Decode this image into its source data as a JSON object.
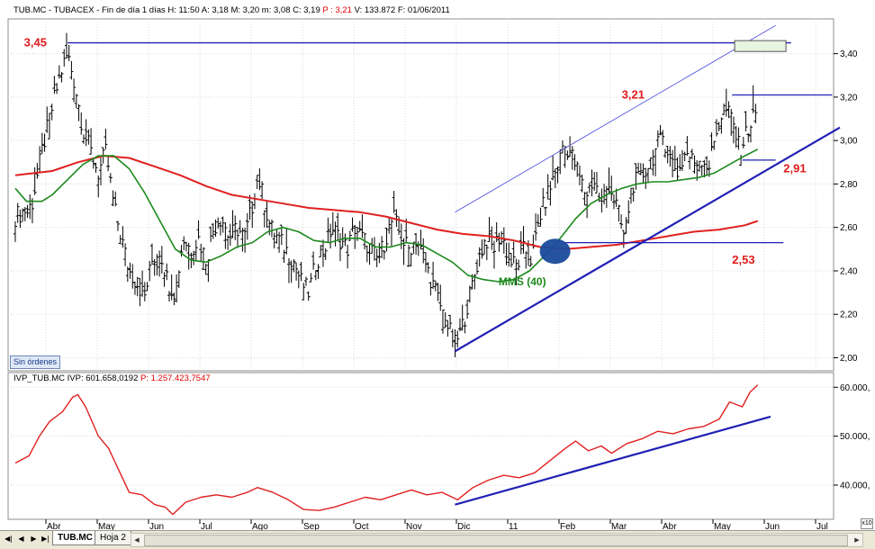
{
  "header": {
    "main": "TUB.MC - TUBACEX - Fin de día 1 días  H: 11:50  A: 3,18  M: 3,20  m: 3,08  C: 3,19",
    "main_red": "P : 3,21",
    "main_tail": "V: 133.872  F: 01/06/2011",
    "lower": "IVP_TUB.MC  IVP: 601.658,0192",
    "lower_red": "P: 1.257.423,7547"
  },
  "colors": {
    "price_bars": "#000000",
    "sma_long": "#e02020",
    "sma_40": "#1c8a1c",
    "trendlines": "#1f1fb5",
    "channel_line": "#5a5ae0",
    "ivp_line": "#e02020",
    "circle_marker": "#1a4a9a",
    "target_box": "#e6f5e0"
  },
  "buttons": {
    "sin_ordenes": "Sin órdenes"
  },
  "tabs": {
    "active": "TUB.MC",
    "other": "Hoja 2"
  },
  "nav_icons": [
    "first-icon",
    "prev-icon",
    "next-icon",
    "last-icon"
  ],
  "corner_tag": "x10",
  "chart_data": [
    {
      "type": "bar",
      "subtype": "ohlc",
      "ylim": [
        1.94,
        3.56
      ],
      "yticks": [
        "2,00",
        "2,20",
        "2,40",
        "2,60",
        "2,80",
        "3,00",
        "3,20",
        "3,40"
      ],
      "ytick_values": [
        2.0,
        2.2,
        2.4,
        2.6,
        2.8,
        3.0,
        3.2,
        3.4
      ],
      "x_months": [
        "Abr",
        "May",
        "Jun",
        "Jul",
        "Ago",
        "Sep",
        "Oct",
        "Nov",
        "Dic",
        "11",
        "Feb",
        "Mar",
        "Abr",
        "May",
        "Jun",
        "Jul"
      ],
      "x_month_index": [
        0,
        1,
        2,
        3,
        4,
        5,
        6,
        7,
        8,
        9,
        10,
        11,
        12,
        13,
        14,
        15
      ],
      "xlim": [
        -0.55,
        15.4
      ],
      "close_path": [
        [
          -0.72,
          2.65
        ],
        [
          -0.4,
          2.7
        ],
        [
          -0.2,
          2.95
        ],
        [
          0.0,
          3.15
        ],
        [
          0.15,
          3.3
        ],
        [
          0.3,
          3.4
        ],
        [
          0.45,
          3.25
        ],
        [
          0.6,
          3.05
        ],
        [
          0.75,
          2.95
        ],
        [
          0.9,
          2.85
        ],
        [
          1.05,
          2.95
        ],
        [
          1.2,
          2.7
        ],
        [
          1.35,
          2.55
        ],
        [
          1.5,
          2.4
        ],
        [
          1.65,
          2.35
        ],
        [
          1.8,
          2.28
        ],
        [
          1.95,
          2.45
        ],
        [
          2.1,
          2.5
        ],
        [
          2.25,
          2.35
        ],
        [
          2.4,
          2.3
        ],
        [
          2.55,
          2.55
        ],
        [
          2.7,
          2.5
        ],
        [
          2.85,
          2.55
        ],
        [
          3.0,
          2.45
        ],
        [
          3.15,
          2.6
        ],
        [
          3.3,
          2.65
        ],
        [
          3.45,
          2.55
        ],
        [
          3.6,
          2.6
        ],
        [
          3.75,
          2.55
        ],
        [
          3.9,
          2.7
        ],
        [
          4.0,
          2.85
        ],
        [
          4.1,
          2.75
        ],
        [
          4.25,
          2.6
        ],
        [
          4.4,
          2.55
        ],
        [
          4.55,
          2.5
        ],
        [
          4.7,
          2.45
        ],
        [
          4.85,
          2.35
        ],
        [
          5.0,
          2.3
        ],
        [
          5.15,
          2.45
        ],
        [
          5.3,
          2.5
        ],
        [
          5.45,
          2.6
        ],
        [
          5.6,
          2.55
        ],
        [
          5.75,
          2.5
        ],
        [
          5.9,
          2.6
        ],
        [
          6.05,
          2.55
        ],
        [
          6.2,
          2.5
        ],
        [
          6.35,
          2.45
        ],
        [
          6.5,
          2.55
        ],
        [
          6.65,
          2.65
        ],
        [
          6.8,
          2.55
        ],
        [
          6.95,
          2.5
        ],
        [
          7.1,
          2.55
        ],
        [
          7.25,
          2.45
        ],
        [
          7.4,
          2.35
        ],
        [
          7.55,
          2.25
        ],
        [
          7.7,
          2.15
        ],
        [
          7.85,
          2.06
        ],
        [
          8.0,
          2.15
        ],
        [
          8.15,
          2.3
        ],
        [
          8.3,
          2.45
        ],
        [
          8.45,
          2.55
        ],
        [
          8.6,
          2.5
        ],
        [
          8.75,
          2.58
        ],
        [
          8.9,
          2.45
        ],
        [
          9.05,
          2.42
        ],
        [
          9.2,
          2.5
        ],
        [
          9.35,
          2.45
        ],
        [
          9.5,
          2.65
        ],
        [
          9.65,
          2.75
        ],
        [
          9.8,
          2.85
        ],
        [
          9.95,
          2.98
        ],
        [
          10.1,
          2.95
        ],
        [
          10.25,
          2.85
        ],
        [
          10.4,
          2.75
        ],
        [
          10.55,
          2.82
        ],
        [
          10.7,
          2.72
        ],
        [
          10.85,
          2.8
        ],
        [
          11.0,
          2.7
        ],
        [
          11.15,
          2.55
        ],
        [
          11.3,
          2.8
        ],
        [
          11.45,
          2.82
        ],
        [
          11.6,
          2.88
        ],
        [
          11.75,
          2.95
        ],
        [
          11.9,
          3.02
        ],
        [
          12.05,
          2.92
        ],
        [
          12.2,
          2.85
        ],
        [
          12.35,
          2.95
        ],
        [
          12.5,
          2.9
        ],
        [
          12.65,
          2.92
        ],
        [
          12.8,
          2.88
        ],
        [
          12.95,
          3.05
        ],
        [
          13.1,
          3.15
        ],
        [
          13.25,
          3.1
        ],
        [
          13.4,
          2.95
        ],
        [
          13.55,
          3.05
        ],
        [
          13.7,
          3.12
        ],
        [
          13.75,
          3.19
        ]
      ],
      "series": [
        {
          "role": "sma_long",
          "points": [
            [
              -0.72,
              2.84
            ],
            [
              0.0,
              2.86
            ],
            [
              0.5,
              2.9
            ],
            [
              1.0,
              2.93
            ],
            [
              1.5,
              2.92
            ],
            [
              2.0,
              2.88
            ],
            [
              2.5,
              2.84
            ],
            [
              3.0,
              2.79
            ],
            [
              3.5,
              2.75
            ],
            [
              4.0,
              2.73
            ],
            [
              4.5,
              2.71
            ],
            [
              5.0,
              2.69
            ],
            [
              5.5,
              2.68
            ],
            [
              6.0,
              2.67
            ],
            [
              6.5,
              2.65
            ],
            [
              7.0,
              2.62
            ],
            [
              7.5,
              2.59
            ],
            [
              8.0,
              2.57
            ],
            [
              8.5,
              2.56
            ],
            [
              9.0,
              2.54
            ],
            [
              9.5,
              2.51
            ],
            [
              10.0,
              2.5
            ],
            [
              10.5,
              2.51
            ],
            [
              11.0,
              2.52
            ],
            [
              11.5,
              2.54
            ],
            [
              12.0,
              2.56
            ],
            [
              12.5,
              2.58
            ],
            [
              13.0,
              2.59
            ],
            [
              13.5,
              2.61
            ],
            [
              13.75,
              2.63
            ]
          ]
        },
        {
          "role": "sma_40",
          "label": "MMS (40)",
          "points": [
            [
              -0.72,
              2.78
            ],
            [
              -0.5,
              2.72
            ],
            [
              -0.2,
              2.72
            ],
            [
              0.0,
              2.75
            ],
            [
              0.3,
              2.82
            ],
            [
              0.6,
              2.89
            ],
            [
              0.9,
              2.93
            ],
            [
              1.2,
              2.93
            ],
            [
              1.5,
              2.87
            ],
            [
              1.8,
              2.76
            ],
            [
              2.1,
              2.63
            ],
            [
              2.4,
              2.5
            ],
            [
              2.7,
              2.45
            ],
            [
              3.0,
              2.44
            ],
            [
              3.3,
              2.47
            ],
            [
              3.6,
              2.51
            ],
            [
              3.9,
              2.53
            ],
            [
              4.2,
              2.58
            ],
            [
              4.5,
              2.6
            ],
            [
              4.8,
              2.58
            ],
            [
              5.1,
              2.54
            ],
            [
              5.4,
              2.53
            ],
            [
              5.7,
              2.55
            ],
            [
              6.0,
              2.55
            ],
            [
              6.3,
              2.51
            ],
            [
              6.6,
              2.51
            ],
            [
              6.9,
              2.53
            ],
            [
              7.2,
              2.52
            ],
            [
              7.5,
              2.48
            ],
            [
              7.8,
              2.44
            ],
            [
              8.1,
              2.38
            ],
            [
              8.4,
              2.36
            ],
            [
              8.7,
              2.35
            ],
            [
              9.0,
              2.36
            ],
            [
              9.3,
              2.4
            ],
            [
              9.6,
              2.47
            ],
            [
              9.9,
              2.55
            ],
            [
              10.2,
              2.64
            ],
            [
              10.5,
              2.71
            ],
            [
              10.8,
              2.75
            ],
            [
              11.1,
              2.78
            ],
            [
              11.4,
              2.8
            ],
            [
              11.7,
              2.81
            ],
            [
              12.0,
              2.81
            ],
            [
              12.3,
              2.82
            ],
            [
              12.6,
              2.83
            ],
            [
              12.9,
              2.85
            ],
            [
              13.2,
              2.89
            ],
            [
              13.5,
              2.93
            ],
            [
              13.75,
              2.96
            ]
          ]
        }
      ],
      "lines": [
        {
          "role": "resistance_345",
          "from": [
            0.3,
            3.45
          ],
          "to": [
            14.4,
            3.45
          ]
        },
        {
          "role": "resistance_321",
          "from": [
            13.25,
            3.21
          ],
          "to": [
            15.2,
            3.21
          ]
        },
        {
          "role": "support_253",
          "from": [
            9.95,
            2.53
          ],
          "to": [
            14.25,
            2.53
          ]
        },
        {
          "role": "support_291",
          "from": [
            13.45,
            2.91
          ],
          "to": [
            14.1,
            2.91
          ]
        },
        {
          "role": "uptrend",
          "from": [
            7.85,
            2.03
          ],
          "to": [
            15.35,
            3.06
          ]
        },
        {
          "role": "channel_top",
          "from": [
            7.85,
            2.67
          ],
          "to": [
            14.1,
            3.53
          ]
        }
      ],
      "annotations": [
        {
          "text": "3,45",
          "x": -0.55,
          "y": 3.45
        },
        {
          "text": "3,21",
          "x": 11.1,
          "y": 3.21
        },
        {
          "text": "2,91",
          "x": 14.25,
          "y": 2.87
        },
        {
          "text": "2,53",
          "x": 13.25,
          "y": 2.45
        },
        {
          "text": "MMS (40)",
          "x": 8.7,
          "y": 2.35
        }
      ],
      "marker": {
        "x": 9.8,
        "y": 2.49
      },
      "target_box": {
        "x": [
          13.3,
          14.3
        ],
        "y": [
          3.41,
          3.46
        ]
      }
    },
    {
      "type": "line",
      "ylim": [
        33000,
        63000
      ],
      "yticks": [
        "40.000,",
        "50.000,",
        "60.000,"
      ],
      "ytick_values": [
        40000,
        50000,
        60000
      ],
      "series": [
        {
          "role": "ivp",
          "points": [
            [
              -0.72,
              44500
            ],
            [
              -0.45,
              46000
            ],
            [
              -0.25,
              50000
            ],
            [
              -0.05,
              53000
            ],
            [
              0.2,
              55000
            ],
            [
              0.4,
              58000
            ],
            [
              0.5,
              58500
            ],
            [
              0.65,
              56000
            ],
            [
              0.9,
              50000
            ],
            [
              1.1,
              47500
            ],
            [
              1.3,
              43000
            ],
            [
              1.5,
              38500
            ],
            [
              1.75,
              38000
            ],
            [
              2.0,
              36000
            ],
            [
              2.2,
              35500
            ],
            [
              2.35,
              34000
            ],
            [
              2.6,
              36500
            ],
            [
              2.9,
              37500
            ],
            [
              3.2,
              38000
            ],
            [
              3.5,
              37500
            ],
            [
              3.8,
              38500
            ],
            [
              4.0,
              39500
            ],
            [
              4.3,
              38500
            ],
            [
              4.6,
              37000
            ],
            [
              4.9,
              35000
            ],
            [
              5.2,
              34800
            ],
            [
              5.5,
              35500
            ],
            [
              5.8,
              36500
            ],
            [
              6.1,
              37500
            ],
            [
              6.4,
              37000
            ],
            [
              6.7,
              38000
            ],
            [
              7.0,
              39000
            ],
            [
              7.3,
              38000
            ],
            [
              7.6,
              38500
            ],
            [
              7.9,
              37000
            ],
            [
              8.2,
              39500
            ],
            [
              8.5,
              41000
            ],
            [
              8.8,
              42000
            ],
            [
              9.1,
              41500
            ],
            [
              9.4,
              42500
            ],
            [
              9.7,
              45000
            ],
            [
              10.0,
              47500
            ],
            [
              10.2,
              49000
            ],
            [
              10.45,
              47000
            ],
            [
              10.7,
              48000
            ],
            [
              10.9,
              46500
            ],
            [
              11.2,
              48500
            ],
            [
              11.5,
              49500
            ],
            [
              11.8,
              51000
            ],
            [
              12.1,
              50500
            ],
            [
              12.4,
              51500
            ],
            [
              12.7,
              52000
            ],
            [
              13.0,
              53500
            ],
            [
              13.2,
              57000
            ],
            [
              13.45,
              56000
            ],
            [
              13.6,
              59000
            ],
            [
              13.75,
              60500
            ]
          ]
        }
      ],
      "lines": [
        {
          "role": "ivp_trend",
          "from": [
            7.85,
            36000
          ],
          "to": [
            14.0,
            54000
          ]
        }
      ]
    }
  ]
}
